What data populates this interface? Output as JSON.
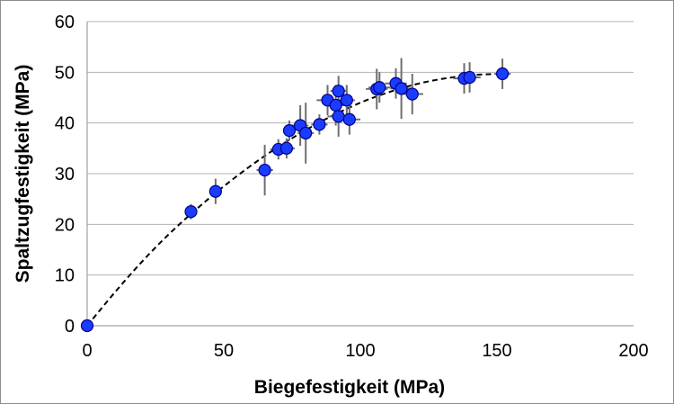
{
  "chart_data": {
    "type": "scatter",
    "title": "",
    "xlabel": "Biegefestigkeit (MPa)",
    "ylabel": "Spaltzugfestigkeit (MPa)",
    "xlim": [
      0,
      200
    ],
    "ylim": [
      0,
      60
    ],
    "xticks": [
      0,
      50,
      100,
      150,
      200
    ],
    "yticks": [
      0,
      10,
      20,
      30,
      40,
      50,
      60
    ],
    "grid": "horizontal",
    "legend": "none",
    "point_color": "#1a3cff",
    "point_edge_color": "#00008b",
    "errorbar_color": "#6e6e6e",
    "trend_line": "dashed",
    "series": [
      {
        "points": [
          {
            "x": 0,
            "y": 0,
            "xerr": 0,
            "yerr": 0
          },
          {
            "x": 38,
            "y": 22.5,
            "xerr": 2,
            "yerr": 1.5
          },
          {
            "x": 47,
            "y": 26.5,
            "xerr": 2,
            "yerr": 2.5
          },
          {
            "x": 65,
            "y": 30.7,
            "xerr": 3,
            "yerr": 5
          },
          {
            "x": 70,
            "y": 34.8,
            "xerr": 3,
            "yerr": 2
          },
          {
            "x": 73,
            "y": 35,
            "xerr": 3,
            "yerr": 2
          },
          {
            "x": 74,
            "y": 38.5,
            "xerr": 2,
            "yerr": 2
          },
          {
            "x": 78,
            "y": 39.5,
            "xerr": 3,
            "yerr": 4
          },
          {
            "x": 80,
            "y": 38,
            "xerr": 3,
            "yerr": 6
          },
          {
            "x": 85,
            "y": 39.7,
            "xerr": 3,
            "yerr": 2
          },
          {
            "x": 88,
            "y": 44.5,
            "xerr": 4,
            "yerr": 3
          },
          {
            "x": 91,
            "y": 43.5,
            "xerr": 3,
            "yerr": 4
          },
          {
            "x": 92,
            "y": 46.3,
            "xerr": 3,
            "yerr": 3
          },
          {
            "x": 92,
            "y": 41.3,
            "xerr": 4,
            "yerr": 4
          },
          {
            "x": 95,
            "y": 44.5,
            "xerr": 3,
            "yerr": 3
          },
          {
            "x": 96,
            "y": 40.7,
            "xerr": 4,
            "yerr": 3
          },
          {
            "x": 106,
            "y": 46.7,
            "xerr": 4,
            "yerr": 4
          },
          {
            "x": 107,
            "y": 47,
            "xerr": 4,
            "yerr": 3
          },
          {
            "x": 113,
            "y": 47.8,
            "xerr": 4,
            "yerr": 3
          },
          {
            "x": 115,
            "y": 46.8,
            "xerr": 4,
            "yerr": 6
          },
          {
            "x": 119,
            "y": 45.7,
            "xerr": 4,
            "yerr": 4
          },
          {
            "x": 138,
            "y": 48.8,
            "xerr": 4,
            "yerr": 3
          },
          {
            "x": 140,
            "y": 49,
            "xerr": 4,
            "yerr": 3
          },
          {
            "x": 152,
            "y": 49.7,
            "xerr": 3,
            "yerr": 3
          }
        ]
      }
    ],
    "trend": [
      {
        "x": 0,
        "y": 0
      },
      {
        "x": 10,
        "y": 6.5
      },
      {
        "x": 20,
        "y": 12.6
      },
      {
        "x": 30,
        "y": 18.1
      },
      {
        "x": 40,
        "y": 23.0
      },
      {
        "x": 50,
        "y": 27.5
      },
      {
        "x": 60,
        "y": 31.6
      },
      {
        "x": 70,
        "y": 35.3
      },
      {
        "x": 80,
        "y": 38.6
      },
      {
        "x": 90,
        "y": 41.5
      },
      {
        "x": 100,
        "y": 44.0
      },
      {
        "x": 110,
        "y": 46.0
      },
      {
        "x": 120,
        "y": 47.6
      },
      {
        "x": 130,
        "y": 48.7
      },
      {
        "x": 140,
        "y": 49.4
      },
      {
        "x": 150,
        "y": 49.7
      }
    ]
  }
}
